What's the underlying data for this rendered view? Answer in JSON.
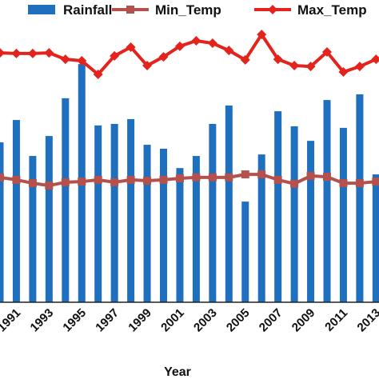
{
  "chart_data": {
    "type": "bar",
    "x_label": "Year",
    "categories": [
      null,
      "1991",
      null,
      "1993",
      null,
      "1995",
      null,
      "1997",
      null,
      "1999",
      null,
      "2001",
      null,
      "2003",
      null,
      "2005",
      null,
      "2007",
      null,
      "2009",
      null,
      "2011",
      null,
      "2013"
    ],
    "ylim": [
      0,
      100
    ],
    "series": [
      {
        "name": "Rainfall",
        "type": "bar",
        "color": "#1f6fbf",
        "values": [
          52.9,
          60.3,
          48.4,
          55.0,
          67.5,
          78.8,
          58.5,
          59.0,
          60.6,
          52.1,
          50.8,
          44.4,
          48.4,
          59.0,
          65.1,
          33.3,
          48.9,
          63.2,
          58.2,
          53.4,
          66.9,
          57.7,
          68.8,
          42.3
        ]
      },
      {
        "name": "Min_Temp",
        "type": "line",
        "marker": "square",
        "color": "#b5514c",
        "values": [
          41.3,
          40.5,
          39.4,
          38.6,
          39.7,
          39.9,
          40.5,
          39.7,
          40.5,
          40.2,
          40.5,
          41.0,
          41.3,
          41.3,
          41.3,
          42.3,
          42.3,
          40.5,
          39.2,
          41.8,
          41.5,
          39.4,
          39.4,
          39.9
        ]
      },
      {
        "name": "Max_Temp",
        "type": "line",
        "marker": "diamond",
        "color": "#e3231c",
        "values": [
          82.5,
          82.3,
          82.3,
          82.5,
          80.4,
          79.9,
          75.4,
          81.5,
          84.4,
          78.3,
          81.2,
          84.7,
          86.5,
          85.7,
          83.3,
          80.2,
          88.6,
          80.4,
          78.3,
          78.0,
          82.8,
          76.2,
          78.0,
          80.4
        ]
      }
    ]
  }
}
